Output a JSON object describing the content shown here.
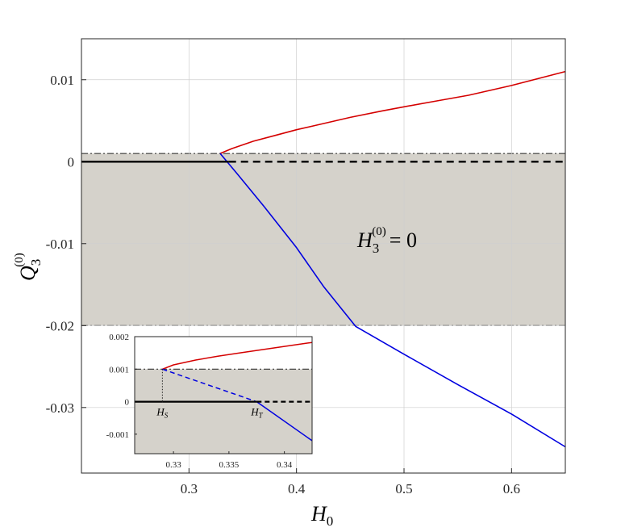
{
  "chart_data": [
    {
      "type": "line",
      "xlim": [
        0.2,
        0.65
      ],
      "ylim": [
        -0.038,
        0.015
      ],
      "x_ticks": [
        "0.3",
        "0.4",
        "0.5",
        "0.6"
      ],
      "y_ticks": [
        "0.01",
        "0",
        "-0.01",
        "-0.02",
        "-0.03"
      ],
      "grid": true,
      "xlabel_main": "H",
      "xlabel_sub": "0",
      "ylabel_main": "Q",
      "ylabel_sub": "3",
      "ylabel_sup": "(0)",
      "region_label": {
        "main": "H",
        "sub": "3",
        "sup": "(0)",
        "rhs": "= 0"
      },
      "shaded_band": [
        -0.02,
        0.001
      ],
      "series": [
        {
          "color": "#d40000",
          "style": "solid",
          "x": [
            0.329,
            0.34,
            0.36,
            0.38,
            0.4,
            0.42,
            0.45,
            0.48,
            0.5,
            0.53,
            0.56,
            0.6,
            0.65
          ],
          "y": [
            0.001,
            0.0016,
            0.0025,
            0.0032,
            0.0039,
            0.0045,
            0.0054,
            0.0062,
            0.0067,
            0.0074,
            0.0081,
            0.0093,
            0.011
          ]
        },
        {
          "color": "#0000e0",
          "style": "solid",
          "x": [
            0.329,
            0.345,
            0.37,
            0.4,
            0.425,
            0.455,
            0.5,
            0.55,
            0.6,
            0.65
          ],
          "y": [
            0.001,
            -0.0015,
            -0.0055,
            -0.0105,
            -0.0152,
            -0.0201,
            -0.0235,
            -0.0272,
            -0.0308,
            -0.0348
          ]
        },
        {
          "color": "#000000",
          "style": "solid",
          "x": [
            0.2,
            0.337
          ],
          "y": [
            0,
            0
          ]
        },
        {
          "color": "#000000",
          "style": "dashed",
          "x": [
            0.337,
            0.65
          ],
          "y": [
            0,
            0
          ]
        }
      ]
    },
    {
      "type": "line",
      "xlim": [
        0.3265,
        0.3425
      ],
      "ylim": [
        -0.0016,
        0.002
      ],
      "x_ticks": [
        "0.33",
        "0.335",
        "0.34"
      ],
      "y_ticks": [
        "0.002",
        "0.001",
        "0",
        "-0.001"
      ],
      "shaded_band": [
        -0.0016,
        0.001
      ],
      "annotations": [
        {
          "main": "H",
          "sub": "S",
          "x": 0.329
        },
        {
          "main": "H",
          "sub": "T",
          "x": 0.3375
        }
      ],
      "series": [
        {
          "color": "#d40000",
          "style": "solid",
          "x": [
            0.329,
            0.33,
            0.332,
            0.334,
            0.336,
            0.338,
            0.34,
            0.342,
            0.3425
          ],
          "y": [
            0.001,
            0.00113,
            0.00128,
            0.0014,
            0.0015,
            0.0016,
            0.0017,
            0.0018,
            0.00182
          ]
        },
        {
          "color": "#0000e0",
          "style": "dashed",
          "x": [
            0.329,
            0.3375
          ],
          "y": [
            0.001,
            0.0
          ]
        },
        {
          "color": "#0000e0",
          "style": "solid",
          "x": [
            0.3375,
            0.3425
          ],
          "y": [
            0.0,
            -0.0012
          ]
        },
        {
          "color": "#000000",
          "style": "solid",
          "x": [
            0.3265,
            0.329
          ],
          "y": [
            0,
            0
          ]
        },
        {
          "color": "#000000",
          "style": "solid",
          "x": [
            0.329,
            0.3375
          ],
          "y": [
            0,
            0
          ]
        },
        {
          "color": "#000000",
          "style": "dashed",
          "x": [
            0.3375,
            0.3425
          ],
          "y": [
            0,
            0
          ]
        }
      ]
    }
  ]
}
